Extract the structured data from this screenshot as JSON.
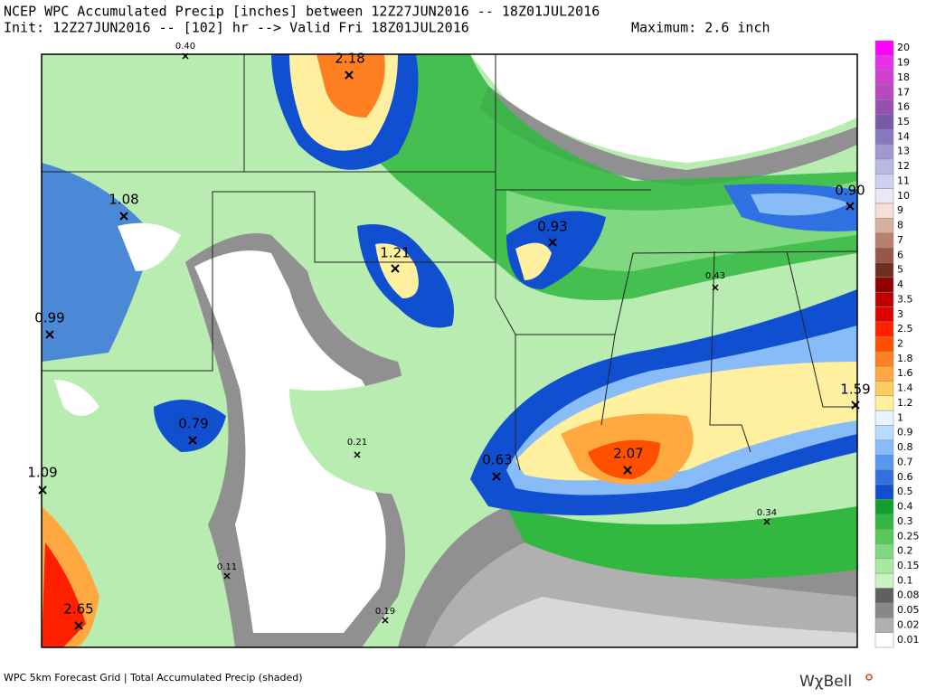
{
  "header": {
    "title": "NCEP WPC Accumulated Precip [inches] between 12Z27JUN2016 -- 18Z01JUL2016",
    "subtitle": "Init: 12Z27JUN2016 -- [102] hr --> Valid Fri 18Z01JUL2016",
    "maximum": "Maximum: 2.6 inch"
  },
  "legend": [
    {
      "label": "20",
      "color": "#ff00ff"
    },
    {
      "label": "19",
      "color": "#e830e8"
    },
    {
      "label": "18",
      "color": "#d040d0"
    },
    {
      "label": "17",
      "color": "#b848c0"
    },
    {
      "label": "16",
      "color": "#9850b0"
    },
    {
      "label": "15",
      "color": "#7858a8"
    },
    {
      "label": "14",
      "color": "#8878c0"
    },
    {
      "label": "13",
      "color": "#a098d0"
    },
    {
      "label": "12",
      "color": "#b8b8e0"
    },
    {
      "label": "11",
      "color": "#d0d0f0"
    },
    {
      "label": "10",
      "color": "#e8e8f8"
    },
    {
      "label": "9",
      "color": "#f4e0d4"
    },
    {
      "label": "8",
      "color": "#d8b0a0"
    },
    {
      "label": "7",
      "color": "#b88070"
    },
    {
      "label": "6",
      "color": "#985848"
    },
    {
      "label": "5",
      "color": "#703020"
    },
    {
      "label": "4",
      "color": "#900000"
    },
    {
      "label": "3.5",
      "color": "#c00000"
    },
    {
      "label": "3",
      "color": "#e00000"
    },
    {
      "label": "2.5",
      "color": "#ff2000"
    },
    {
      "label": "2",
      "color": "#ff5000"
    },
    {
      "label": "1.8",
      "color": "#ff8020"
    },
    {
      "label": "1.6",
      "color": "#ffa840"
    },
    {
      "label": "1.4",
      "color": "#ffcc60"
    },
    {
      "label": "1.2",
      "color": "#fff0a0"
    },
    {
      "label": "1",
      "color": "#e8f4ff"
    },
    {
      "label": "0.9",
      "color": "#b8dcff"
    },
    {
      "label": "0.8",
      "color": "#88bcf8"
    },
    {
      "label": "0.7",
      "color": "#5898f0"
    },
    {
      "label": "0.6",
      "color": "#3070e0"
    },
    {
      "label": "0.5",
      "color": "#1050d0"
    },
    {
      "label": "0.4",
      "color": "#10a030"
    },
    {
      "label": "0.3",
      "color": "#30b840"
    },
    {
      "label": "0.25",
      "color": "#58c858"
    },
    {
      "label": "0.2",
      "color": "#80d880"
    },
    {
      "label": "0.15",
      "color": "#a8e8a0"
    },
    {
      "label": "0.1",
      "color": "#c8f4c0"
    },
    {
      "label": "0.08",
      "color": "#606060"
    },
    {
      "label": "0.05",
      "color": "#888888"
    },
    {
      "label": "0.02",
      "color": "#b0b0b0"
    },
    {
      "label": "0.01",
      "color": "#ffffff"
    }
  ],
  "points": [
    "0.40",
    "2.18",
    "1.08",
    "0.99",
    "0.79",
    "1.09",
    "2.65",
    "0.11",
    "0.19",
    "0.21",
    "0.63",
    "2.07",
    "0.34",
    "1.59",
    "0.43",
    "0.90",
    "0.93",
    "1.21"
  ],
  "footer": {
    "caption": "WPC 5km Forecast Grid | Total Accumulated Precip (shaded)",
    "logo": "WχBell"
  }
}
